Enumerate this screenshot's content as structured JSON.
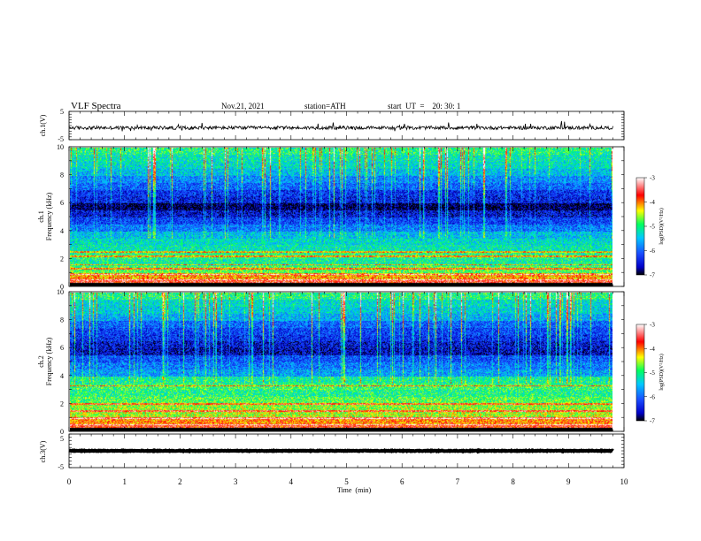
{
  "header": {
    "title": "VLF  Spectra",
    "date": "Nov.21, 2021",
    "station": "station=ATH",
    "start": "start  UT  =    20: 30: 1"
  },
  "colors": {
    "colormap": [
      "#000000",
      "#1a1aff",
      "#00c8ff",
      "#00ff60",
      "#ffff00",
      "#ff0000",
      "#ffffff"
    ],
    "waveform": "#000000"
  },
  "chart_data": [
    {
      "type": "line",
      "panel": "ch1-waveform",
      "ylabel": "ch.1(V)",
      "ylim": [
        -5,
        5
      ],
      "yticks": [
        "5",
        "-5"
      ],
      "xlim": [
        0,
        10
      ],
      "mean_level": -0.8,
      "noise_amplitude": 0.6
    },
    {
      "type": "heatmap",
      "panel": "ch1-spectrogram",
      "ylabel": "ch.1\nFrequency (kHz)",
      "ylabel_lines": [
        "ch.1",
        "Frequency (kHz)"
      ],
      "ylim": [
        0,
        10
      ],
      "yticks": [
        "10",
        "8",
        "6",
        "4",
        "2",
        "0"
      ],
      "xlim": [
        0,
        9.8
      ],
      "colorbar": {
        "label": "log(PSD)(V²/Hz)",
        "range": [
          -7,
          -3
        ],
        "ticks": [
          "-3",
          "-4",
          "-5",
          "-6",
          "-7"
        ]
      },
      "frequency_profile_log_psd": [
        {
          "f": 0.25,
          "v": -3.6
        },
        {
          "f": 0.75,
          "v": -4.1
        },
        {
          "f": 1.25,
          "v": -4.8
        },
        {
          "f": 1.75,
          "v": -5.1
        },
        {
          "f": 2.25,
          "v": -5.0
        },
        {
          "f": 2.75,
          "v": -5.2
        },
        {
          "f": 3.25,
          "v": -5.3
        },
        {
          "f": 3.75,
          "v": -5.5
        },
        {
          "f": 4.25,
          "v": -5.9
        },
        {
          "f": 4.75,
          "v": -6.2
        },
        {
          "f": 5.25,
          "v": -6.5
        },
        {
          "f": 5.75,
          "v": -6.9
        },
        {
          "f": 6.25,
          "v": -6.4
        },
        {
          "f": 6.75,
          "v": -6.3
        },
        {
          "f": 7.25,
          "v": -6.0
        },
        {
          "f": 7.75,
          "v": -5.8
        },
        {
          "f": 8.25,
          "v": -5.5
        },
        {
          "f": 8.75,
          "v": -5.3
        },
        {
          "f": 9.25,
          "v": -5.2
        },
        {
          "f": 9.75,
          "v": -5.0
        }
      ],
      "lines_khz": [
        0.5,
        0.9,
        1.3,
        1.6,
        2.2,
        2.5
      ]
    },
    {
      "type": "heatmap",
      "panel": "ch2-spectrogram",
      "ylabel": "ch.2\nFrequency (kHz)",
      "ylabel_lines": [
        "ch.2",
        "Frequency (kHz)"
      ],
      "ylim": [
        0,
        10
      ],
      "yticks": [
        "10",
        "8",
        "6",
        "4",
        "2",
        "0"
      ],
      "xlim": [
        0,
        9.8
      ],
      "colorbar": {
        "label": "log(PSD)(V²/Hz)",
        "range": [
          -7,
          -3
        ],
        "ticks": [
          "-3",
          "-4",
          "-5",
          "-6",
          "-7"
        ]
      },
      "frequency_profile_log_psd": [
        {
          "f": 0.25,
          "v": -3.7
        },
        {
          "f": 0.75,
          "v": -4.0
        },
        {
          "f": 1.25,
          "v": -4.5
        },
        {
          "f": 1.75,
          "v": -4.6
        },
        {
          "f": 2.25,
          "v": -4.8
        },
        {
          "f": 2.75,
          "v": -5.0
        },
        {
          "f": 3.25,
          "v": -4.9
        },
        {
          "f": 3.75,
          "v": -5.1
        },
        {
          "f": 4.25,
          "v": -5.7
        },
        {
          "f": 4.75,
          "v": -5.9
        },
        {
          "f": 5.25,
          "v": -6.1
        },
        {
          "f": 5.75,
          "v": -6.6
        },
        {
          "f": 6.25,
          "v": -6.5
        },
        {
          "f": 6.75,
          "v": -6.3
        },
        {
          "f": 7.25,
          "v": -6.2
        },
        {
          "f": 7.75,
          "v": -6.0
        },
        {
          "f": 8.25,
          "v": -5.6
        },
        {
          "f": 8.75,
          "v": -5.4
        },
        {
          "f": 9.25,
          "v": -5.3
        },
        {
          "f": 9.75,
          "v": -5.0
        }
      ],
      "lines_khz": [
        0.5,
        1.0,
        1.5,
        2.0,
        3.3
      ]
    },
    {
      "type": "line",
      "panel": "ch3-waveform",
      "ylabel": "ch.3(V)",
      "ylim": [
        -5,
        5
      ],
      "yticks": [
        "5",
        "0",
        "-5"
      ],
      "xlim": [
        0,
        10
      ],
      "mean_level": 0,
      "noise_amplitude": 0.1
    }
  ],
  "xaxis": {
    "label": "Time  (min)",
    "range": [
      0,
      10
    ],
    "ticks": [
      "0",
      "1",
      "2",
      "3",
      "4",
      "5",
      "6",
      "7",
      "8",
      "9",
      "10"
    ]
  }
}
